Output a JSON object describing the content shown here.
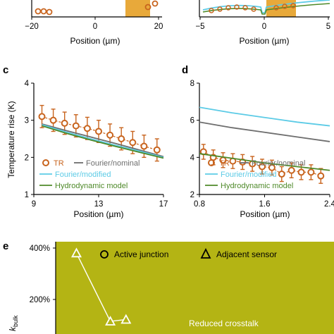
{
  "colors": {
    "tr": "#c8641e",
    "fourier_nominal": "#6e6e6e",
    "fourier_modified": "#5ccbe6",
    "hydrodynamic": "#4f8a2a",
    "shade": "#e8a93a",
    "olive": "#b4b414"
  },
  "panels_top": {
    "left": {
      "xticks": [
        "−20",
        "0",
        "20"
      ],
      "xlabel": "Position (µm)"
    },
    "right": {
      "xticks": [
        "−5",
        "0",
        "5"
      ],
      "xlabel": "Position (µm)"
    }
  },
  "panel_labels": {
    "c": "c",
    "d": "d",
    "e": "e"
  },
  "legend_cd": {
    "tr": "TR",
    "fourier_nominal": "Fourier/nominal",
    "fourier_modified": "Fourier/modified",
    "hydrodynamic": "Hydrodynamic model"
  },
  "legend_e": {
    "active": "Active junction",
    "adjacent": "Adjacent sensor"
  },
  "annotation_e": "Reduced crosstalk",
  "chart_data": [
    {
      "panel": "c",
      "type": "line",
      "xlabel": "Position (µm)",
      "ylabel": "Temperature rise (K)",
      "xlim": [
        9,
        17
      ],
      "ylim": [
        1,
        4
      ],
      "xticks": [
        9,
        13,
        17
      ],
      "yticks": [
        1,
        2,
        3,
        4
      ],
      "series": [
        {
          "name": "TR",
          "x": [
            9.5,
            10.2,
            10.9,
            11.6,
            12.3,
            13.0,
            13.7,
            14.4,
            15.1,
            15.8,
            16.6
          ],
          "y": [
            3.1,
            3.0,
            2.92,
            2.85,
            2.78,
            2.7,
            2.6,
            2.5,
            2.4,
            2.3,
            2.2
          ],
          "err": [
            0.3,
            0.3,
            0.3,
            0.3,
            0.3,
            0.3,
            0.3,
            0.3,
            0.3,
            0.3,
            0.3
          ]
        },
        {
          "name": "Fourier/nominal",
          "x": [
            9.5,
            11,
            12.5,
            14,
            15.5,
            17
          ],
          "y": [
            2.9,
            2.72,
            2.55,
            2.38,
            2.2,
            2.02
          ]
        },
        {
          "name": "Fourier/modified",
          "x": [
            9.5,
            11,
            12.5,
            14,
            15.5,
            17
          ],
          "y": [
            2.88,
            2.68,
            2.5,
            2.33,
            2.17,
            2.0
          ]
        },
        {
          "name": "Hydrodynamic model",
          "x": [
            9.5,
            11,
            12.5,
            14,
            15.5,
            17
          ],
          "y": [
            2.85,
            2.65,
            2.47,
            2.3,
            2.14,
            1.98
          ]
        }
      ]
    },
    {
      "panel": "d",
      "type": "line",
      "xlabel": "Position (µm)",
      "ylabel": "",
      "xlim": [
        0.8,
        2.4
      ],
      "ylim": [
        2,
        8
      ],
      "xticks": [
        0.8,
        1.6,
        2.4
      ],
      "xticklabels": [
        "0.8",
        "1.6",
        "2.4"
      ],
      "yticks": [
        2,
        4,
        6,
        8
      ],
      "series": [
        {
          "name": "TR",
          "x": [
            0.85,
            0.97,
            1.09,
            1.21,
            1.33,
            1.45,
            1.57,
            1.69,
            1.81,
            1.93,
            2.05,
            2.17,
            2.29
          ],
          "y": [
            4.3,
            4.0,
            3.85,
            3.8,
            3.75,
            3.65,
            3.5,
            3.45,
            3.1,
            3.3,
            3.2,
            3.2,
            3.0
          ],
          "err": [
            0.4,
            0.4,
            0.4,
            0.4,
            0.4,
            0.4,
            0.4,
            0.4,
            0.4,
            0.4,
            0.4,
            0.4,
            0.4
          ]
        },
        {
          "name": "Fourier/modified",
          "x": [
            0.8,
            1.2,
            1.6,
            2.0,
            2.4
          ],
          "y": [
            6.7,
            6.4,
            6.15,
            5.9,
            5.7
          ]
        },
        {
          "name": "Fourier/nominal",
          "x": [
            0.8,
            1.2,
            1.6,
            2.0,
            2.4
          ],
          "y": [
            5.9,
            5.6,
            5.35,
            5.1,
            4.85
          ]
        },
        {
          "name": "Hydrodynamic model",
          "x": [
            0.8,
            1.2,
            1.6,
            2.0,
            2.4
          ],
          "y": [
            4.2,
            3.95,
            3.7,
            3.5,
            3.3
          ]
        }
      ]
    },
    {
      "panel": "e",
      "type": "scatter",
      "ylabel": "k_bulk",
      "yticks": [
        200,
        400
      ],
      "yticklabels": [
        "200%",
        "400%"
      ],
      "ylim": [
        50,
        410
      ],
      "xlim": [
        0,
        10
      ],
      "series": [
        {
          "name": "Adjacent sensor",
          "x": [
            0.5,
            1.8,
            2.4
          ],
          "y": [
            380,
            115,
            122
          ]
        }
      ]
    }
  ]
}
